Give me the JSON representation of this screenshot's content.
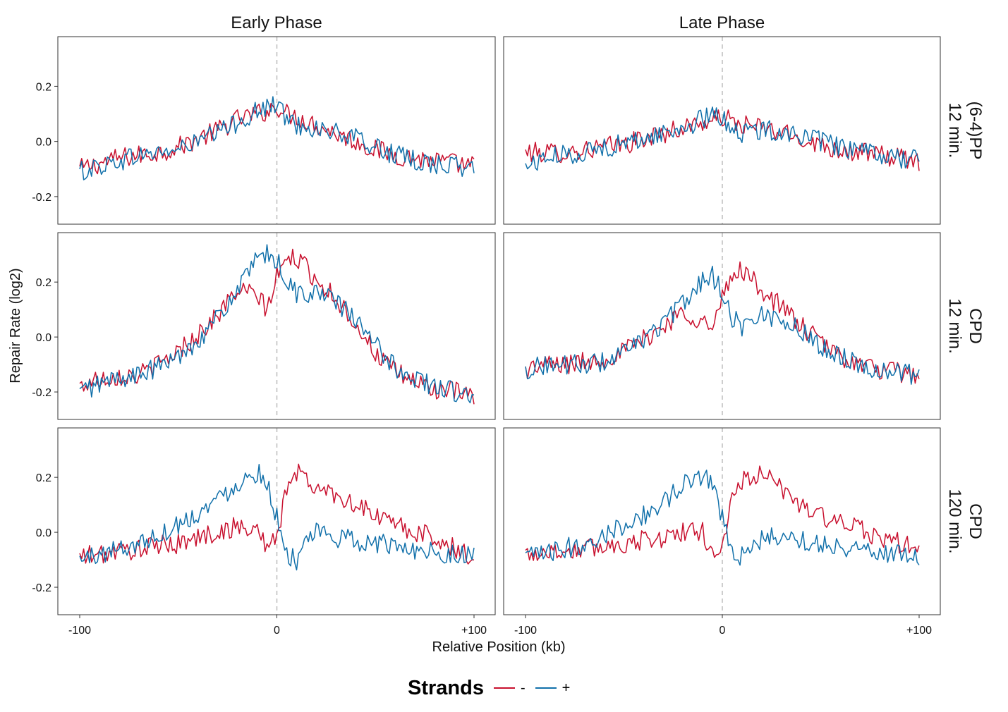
{
  "chart_data": {
    "type": "line",
    "facet_columns": [
      "Early Phase",
      "Late Phase"
    ],
    "facet_rows": [
      [
        "(6-4)PP",
        "12 min."
      ],
      [
        "CPD",
        "12 min."
      ],
      [
        "CPD",
        "120 min."
      ]
    ],
    "xlabel": "Relative Position (kb)",
    "ylabel": "Repair Rate (log2)",
    "xlim": [
      -100,
      100
    ],
    "ylim": [
      -0.3,
      0.38
    ],
    "x_ticks": [
      -100,
      0,
      100
    ],
    "x_tick_labels": [
      "-100",
      "0",
      "+100"
    ],
    "y_ticks": [
      -0.2,
      0.0,
      0.2
    ],
    "y_tick_labels": [
      "-0.2",
      "0.0",
      "0.2"
    ],
    "reference_line_x": 0,
    "legend": {
      "title": "Strands",
      "position": "bottom",
      "entries": [
        {
          "label": "-",
          "color": "#C8102E"
        },
        {
          "label": "+",
          "color": "#1170AA"
        }
      ]
    },
    "x": [
      -100,
      -90,
      -80,
      -70,
      -60,
      -50,
      -40,
      -30,
      -20,
      -10,
      -5,
      0,
      5,
      10,
      20,
      30,
      40,
      50,
      60,
      70,
      80,
      90,
      100
    ],
    "panels": [
      {
        "row": 0,
        "column": 0,
        "series": [
          {
            "name": "-",
            "values": [
              -0.1,
              -0.08,
              -0.06,
              -0.05,
              -0.04,
              -0.02,
              0.01,
              0.04,
              0.08,
              0.1,
              0.11,
              0.13,
              0.1,
              0.09,
              0.06,
              0.03,
              0.0,
              -0.03,
              -0.05,
              -0.06,
              -0.07,
              -0.08,
              -0.09
            ]
          },
          {
            "name": "+",
            "values": [
              -0.11,
              -0.09,
              -0.07,
              -0.05,
              -0.04,
              -0.03,
              0.0,
              0.03,
              0.07,
              0.11,
              0.12,
              0.14,
              0.08,
              0.06,
              0.05,
              0.03,
              0.01,
              -0.02,
              -0.05,
              -0.07,
              -0.08,
              -0.09,
              -0.1
            ]
          }
        ]
      },
      {
        "row": 0,
        "column": 1,
        "series": [
          {
            "name": "-",
            "values": [
              -0.04,
              -0.04,
              -0.04,
              -0.03,
              -0.02,
              -0.01,
              0.01,
              0.03,
              0.05,
              0.07,
              0.07,
              0.09,
              0.07,
              0.06,
              0.05,
              0.03,
              0.01,
              -0.01,
              -0.03,
              -0.04,
              -0.05,
              -0.06,
              -0.07
            ]
          },
          {
            "name": "+",
            "values": [
              -0.09,
              -0.06,
              -0.05,
              -0.04,
              -0.02,
              -0.01,
              0.01,
              0.03,
              0.05,
              0.08,
              0.09,
              0.09,
              0.05,
              0.03,
              0.04,
              0.04,
              0.02,
              0.0,
              -0.02,
              -0.04,
              -0.05,
              -0.06,
              -0.07
            ]
          }
        ]
      },
      {
        "row": 1,
        "column": 0,
        "series": [
          {
            "name": "-",
            "values": [
              -0.18,
              -0.15,
              -0.14,
              -0.14,
              -0.1,
              -0.05,
              0.01,
              0.08,
              0.17,
              0.15,
              0.1,
              0.22,
              0.28,
              0.29,
              0.21,
              0.14,
              0.05,
              -0.06,
              -0.13,
              -0.16,
              -0.19,
              -0.2,
              -0.22
            ]
          },
          {
            "name": "+",
            "values": [
              -0.2,
              -0.17,
              -0.15,
              -0.14,
              -0.11,
              -0.07,
              -0.01,
              0.07,
              0.17,
              0.28,
              0.3,
              0.28,
              0.2,
              0.16,
              0.16,
              0.13,
              0.06,
              -0.03,
              -0.11,
              -0.15,
              -0.18,
              -0.2,
              -0.22
            ]
          }
        ]
      },
      {
        "row": 1,
        "column": 1,
        "series": [
          {
            "name": "-",
            "values": [
              -0.12,
              -0.1,
              -0.1,
              -0.09,
              -0.08,
              -0.05,
              -0.01,
              0.04,
              0.09,
              0.06,
              0.02,
              0.14,
              0.22,
              0.25,
              0.17,
              0.11,
              0.04,
              -0.02,
              -0.07,
              -0.1,
              -0.12,
              -0.13,
              -0.14
            ]
          },
          {
            "name": "+",
            "values": [
              -0.12,
              -0.1,
              -0.1,
              -0.1,
              -0.09,
              -0.06,
              -0.01,
              0.05,
              0.12,
              0.21,
              0.22,
              0.17,
              0.07,
              0.04,
              0.08,
              0.07,
              0.02,
              -0.03,
              -0.07,
              -0.1,
              -0.12,
              -0.13,
              -0.14
            ]
          }
        ]
      },
      {
        "row": 2,
        "column": 0,
        "series": [
          {
            "name": "-",
            "values": [
              -0.09,
              -0.08,
              -0.07,
              -0.06,
              -0.05,
              -0.04,
              -0.02,
              0.0,
              0.02,
              0.01,
              -0.05,
              -0.03,
              0.17,
              0.22,
              0.16,
              0.14,
              0.1,
              0.06,
              0.03,
              0.0,
              -0.02,
              -0.06,
              -0.1
            ]
          },
          {
            "name": "+",
            "values": [
              -0.1,
              -0.08,
              -0.06,
              -0.04,
              -0.01,
              0.03,
              0.07,
              0.12,
              0.18,
              0.22,
              0.19,
              0.05,
              -0.08,
              -0.1,
              0.0,
              -0.02,
              -0.03,
              -0.04,
              -0.05,
              -0.06,
              -0.07,
              -0.08,
              -0.09
            ]
          }
        ]
      },
      {
        "row": 2,
        "column": 1,
        "series": [
          {
            "name": "-",
            "values": [
              -0.08,
              -0.07,
              -0.07,
              -0.06,
              -0.05,
              -0.04,
              -0.03,
              -0.02,
              0.0,
              0.0,
              -0.07,
              -0.06,
              0.12,
              0.19,
              0.21,
              0.16,
              0.1,
              0.06,
              0.03,
              0.01,
              -0.02,
              -0.04,
              -0.06
            ]
          },
          {
            "name": "+",
            "values": [
              -0.09,
              -0.08,
              -0.06,
              -0.04,
              -0.01,
              0.03,
              0.06,
              0.11,
              0.17,
              0.21,
              0.19,
              0.05,
              -0.06,
              -0.09,
              -0.03,
              -0.01,
              -0.03,
              -0.04,
              -0.05,
              -0.06,
              -0.07,
              -0.08,
              -0.09
            ]
          }
        ]
      }
    ]
  }
}
